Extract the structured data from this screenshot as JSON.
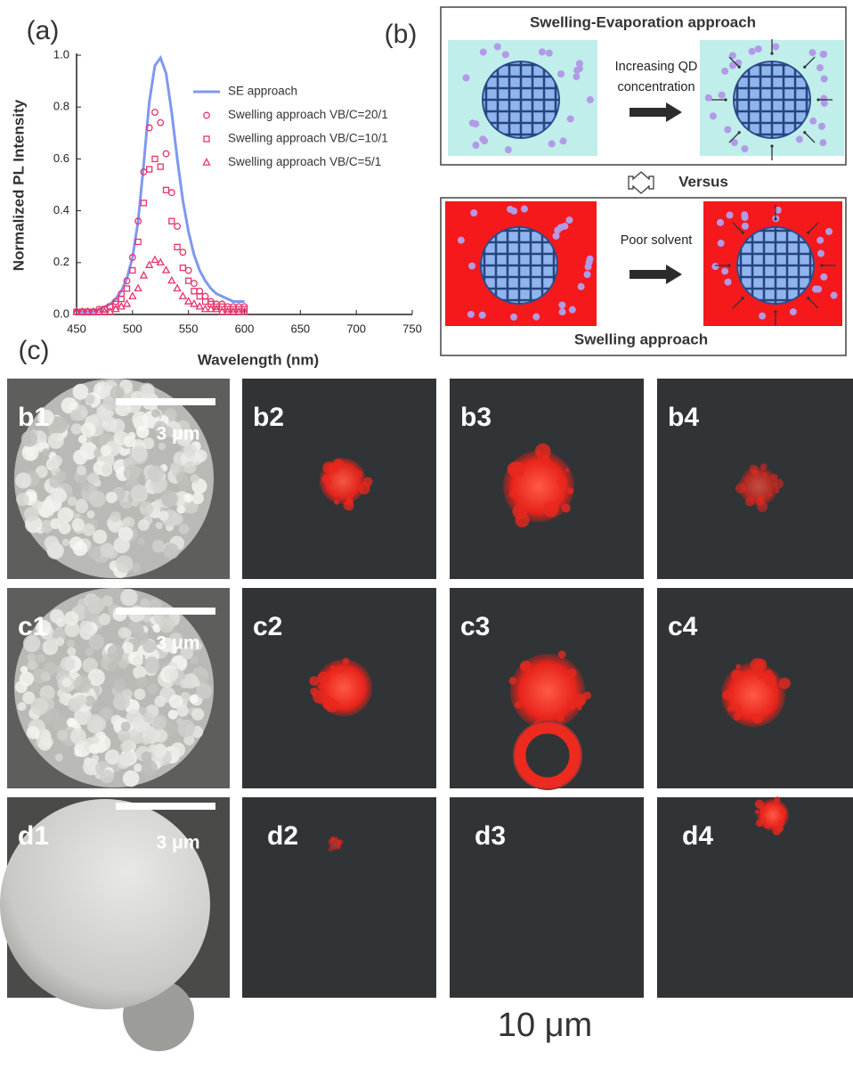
{
  "chart_data": {
    "type": "line",
    "panel_label": "(a)",
    "x_label": "Wavelength (nm)",
    "y_label": "Normalized PL Intensity",
    "x": [
      450,
      455,
      460,
      465,
      470,
      475,
      480,
      485,
      490,
      495,
      500,
      505,
      510,
      515,
      520,
      525,
      530,
      535,
      540,
      545,
      550,
      555,
      560,
      565,
      570,
      575,
      580,
      585,
      590,
      595,
      600
    ],
    "series": [
      {
        "name": "SE approach",
        "color": "#7f98f0",
        "marker": "none",
        "values": [
          0.01,
          0.01,
          0.01,
          0.01,
          0.02,
          0.03,
          0.04,
          0.06,
          0.09,
          0.14,
          0.22,
          0.36,
          0.58,
          0.82,
          0.96,
          0.99,
          0.93,
          0.78,
          0.6,
          0.44,
          0.32,
          0.23,
          0.17,
          0.13,
          0.1,
          0.08,
          0.07,
          0.06,
          0.05,
          0.05,
          0.05
        ]
      },
      {
        "name": "Swelling approach VB/C=20/1",
        "color": "#e8336b",
        "marker": "circle",
        "values": [
          0.01,
          0.01,
          0.01,
          0.01,
          0.02,
          0.02,
          0.03,
          0.05,
          0.08,
          0.13,
          0.22,
          0.36,
          0.55,
          0.72,
          0.78,
          0.74,
          0.62,
          0.47,
          0.34,
          0.24,
          0.17,
          0.12,
          0.09,
          0.07,
          0.05,
          0.04,
          0.04,
          0.03,
          0.03,
          0.03,
          0.03
        ]
      },
      {
        "name": "Swelling approach VB/C=10/1",
        "color": "#e8336b",
        "marker": "square",
        "values": [
          0.01,
          0.01,
          0.01,
          0.01,
          0.01,
          0.02,
          0.03,
          0.04,
          0.06,
          0.1,
          0.17,
          0.28,
          0.43,
          0.56,
          0.6,
          0.57,
          0.48,
          0.36,
          0.26,
          0.18,
          0.13,
          0.09,
          0.07,
          0.05,
          0.04,
          0.03,
          0.03,
          0.02,
          0.02,
          0.02,
          0.02
        ]
      },
      {
        "name": "Swelling approach VB/C=5/1",
        "color": "#e8336b",
        "marker": "triangle",
        "values": [
          0.01,
          0.01,
          0.01,
          0.01,
          0.01,
          0.01,
          0.01,
          0.02,
          0.03,
          0.04,
          0.07,
          0.1,
          0.15,
          0.19,
          0.21,
          0.2,
          0.17,
          0.13,
          0.1,
          0.07,
          0.05,
          0.04,
          0.03,
          0.02,
          0.02,
          0.02,
          0.01,
          0.01,
          0.01,
          0.01,
          0.01
        ]
      }
    ],
    "xlim": [
      450,
      750
    ],
    "xticks": [
      450,
      500,
      550,
      600,
      650,
      700,
      750
    ],
    "ylim": [
      0,
      1.0
    ],
    "yticks": [
      {
        "value": 0,
        "label": "0.0"
      },
      0.2,
      0.4,
      0.6,
      0.8,
      {
        "value": 1.0,
        "label": "1.0"
      }
    ],
    "grid": false,
    "legend": "upper right"
  },
  "diagram": {
    "panel_label": "(b)",
    "top_title": "Swelling-Evaporation approach",
    "top_step": [
      "Increasing QD",
      "concentration"
    ],
    "versus": "Versus",
    "bottom_step": "Poor solvent",
    "bottom_title": "Swelling approach"
  },
  "micrographs": {
    "panel_label": "(c)",
    "labels": [
      [
        "b1",
        "b2",
        "b3",
        "b4"
      ],
      [
        "c1",
        "c2",
        "c3",
        "c4"
      ],
      [
        "d1",
        "d2",
        "d3",
        "d4"
      ]
    ],
    "sem_scale": [
      "3 μm",
      "3 μm",
      "3 μm"
    ],
    "scale_bar": "10 μm"
  }
}
